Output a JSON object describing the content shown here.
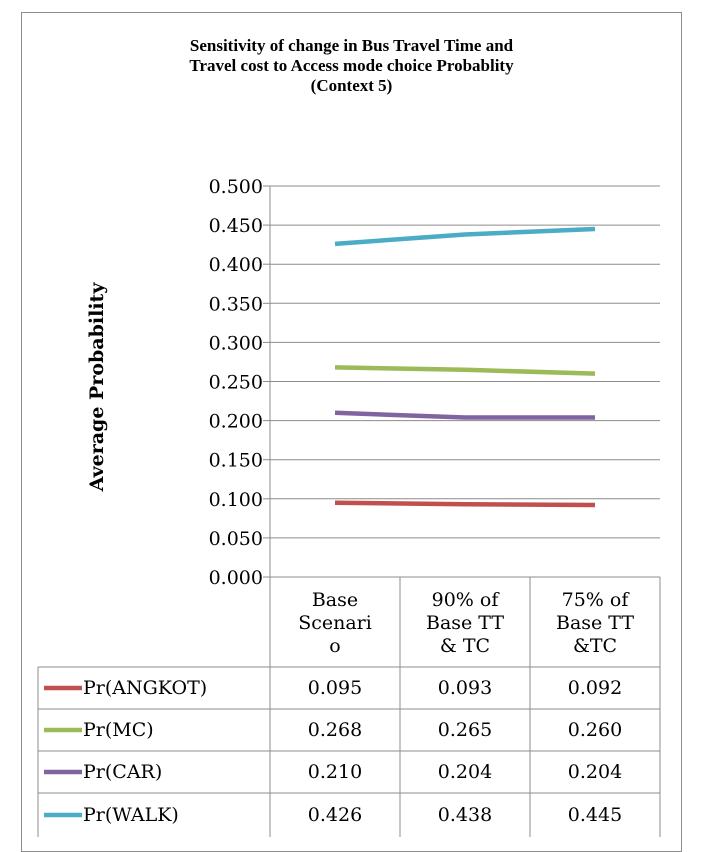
{
  "chart_data": {
    "type": "line",
    "title_lines": [
      "Sensitivity of change in Bus Travel Time and",
      "Travel cost to Access mode choice Probablity",
      "(Context 5)"
    ],
    "ylabel": "Average Probability",
    "xlabel": "",
    "ylim": [
      0,
      0.5
    ],
    "yticks": [
      "0.000",
      "0.050",
      "0.100",
      "0.150",
      "0.200",
      "0.250",
      "0.300",
      "0.350",
      "0.400",
      "0.450",
      "0.500"
    ],
    "categories": [
      [
        "Base",
        "Scenari",
        "o"
      ],
      [
        "90% of",
        "Base TT",
        "& TC"
      ],
      [
        "75% of",
        "Base TT",
        "&TC"
      ]
    ],
    "grid": true,
    "legend": "data-table-bottom",
    "series": [
      {
        "name": "Pr(ANGKOT)",
        "color": "#c0504d",
        "values": [
          0.095,
          0.093,
          0.092
        ],
        "labels": [
          "0.095",
          "0.093",
          "0.092"
        ]
      },
      {
        "name": "Pr(MC)",
        "color": "#9bbb59",
        "values": [
          0.268,
          0.265,
          0.26
        ],
        "labels": [
          "0.268",
          "0.265",
          "0.260"
        ]
      },
      {
        "name": "Pr(CAR)",
        "color": "#8064a2",
        "values": [
          0.21,
          0.204,
          0.204
        ],
        "labels": [
          "0.210",
          "0.204",
          "0.204"
        ]
      },
      {
        "name": "Pr(WALK)",
        "color": "#4bacc6",
        "values": [
          0.426,
          0.438,
          0.445
        ],
        "labels": [
          "0.426",
          "0.438",
          "0.445"
        ]
      }
    ]
  }
}
